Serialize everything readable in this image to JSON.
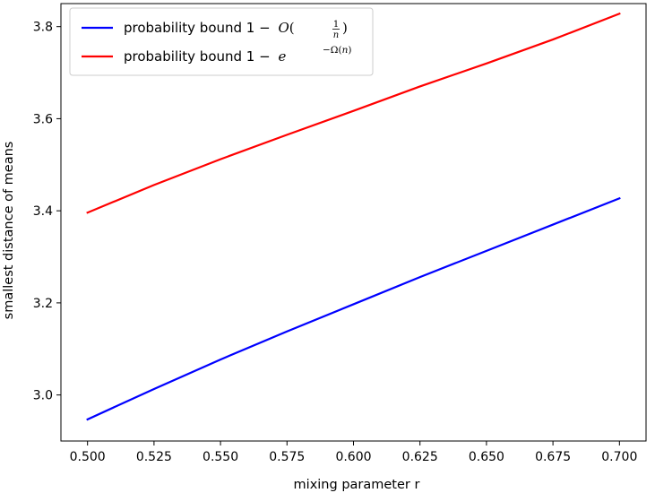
{
  "chart_data": {
    "type": "line",
    "title": "",
    "xlabel": "mixing parameter r",
    "ylabel": "smallest distance of means",
    "xlim": [
      0.49,
      0.71
    ],
    "ylim": [
      2.9,
      3.85
    ],
    "xticks": [
      0.5,
      0.525,
      0.55,
      0.575,
      0.6,
      0.625,
      0.65,
      0.675,
      0.7
    ],
    "xtick_labels": [
      "0.500",
      "0.525",
      "0.550",
      "0.575",
      "0.600",
      "0.625",
      "0.650",
      "0.675",
      "0.700"
    ],
    "yticks": [
      3.0,
      3.2,
      3.4,
      3.6,
      3.8
    ],
    "ytick_labels": [
      "3.0",
      "3.2",
      "3.4",
      "3.6",
      "3.8"
    ],
    "grid": false,
    "legend_position": "top-left",
    "series": [
      {
        "name": "probability bound 1 − O(1/n)",
        "legend_text": "probability bound 1 −",
        "color": "#0000ff",
        "x": [
          0.5,
          0.525,
          0.55,
          0.575,
          0.6,
          0.625,
          0.65,
          0.675,
          0.7
        ],
        "y": [
          2.947,
          3.013,
          3.077,
          3.138,
          3.197,
          3.256,
          3.313,
          3.37,
          3.427
        ]
      },
      {
        "name": "probability bound 1 − e^(−Ω(n))",
        "legend_text": "probability bound 1 −",
        "color": "#ff0000",
        "x": [
          0.5,
          0.525,
          0.55,
          0.575,
          0.6,
          0.625,
          0.65,
          0.675,
          0.7
        ],
        "y": [
          3.396,
          3.456,
          3.512,
          3.565,
          3.617,
          3.67,
          3.72,
          3.772,
          3.828
        ]
      }
    ]
  }
}
